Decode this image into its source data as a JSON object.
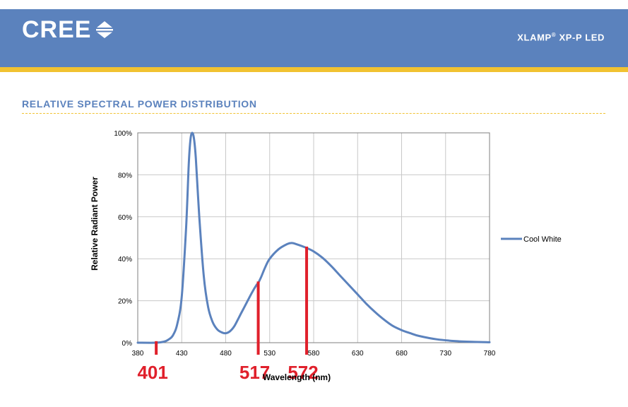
{
  "header": {
    "logo_text": "CREE",
    "product_name": "XLAMP",
    "product_reg": "®",
    "product_model": " XP-P LED",
    "colors": {
      "band": "#5b82bd",
      "stripe": "#f1c231"
    },
    "logo_icon": "cree-diamond-icon"
  },
  "section": {
    "title": "RELATIVE SPECTRAL POWER DISTRIBUTION"
  },
  "chart_data": {
    "type": "line",
    "xlabel": "Wavelength (nm)",
    "ylabel": "Relative Radiant Power",
    "xlim": [
      380,
      780
    ],
    "ylim": [
      0,
      100
    ],
    "xticks": [
      380,
      430,
      480,
      530,
      580,
      630,
      680,
      730,
      780
    ],
    "yticks": [
      0,
      20,
      40,
      60,
      80,
      100
    ],
    "ytick_labels": [
      "0%",
      "20%",
      "40%",
      "60%",
      "80%",
      "100%"
    ],
    "grid": true,
    "legend_position": "right",
    "series": [
      {
        "name": "Cool White",
        "color": "#5b82bd",
        "x": [
          380,
          400,
          410,
          415,
          420,
          425,
          430,
          435,
          438,
          440,
          442,
          444,
          446,
          450,
          455,
          460,
          465,
          470,
          475,
          480,
          485,
          490,
          495,
          500,
          505,
          510,
          515,
          517,
          520,
          525,
          530,
          540,
          550,
          555,
          560,
          570,
          580,
          590,
          600,
          610,
          620,
          630,
          640,
          650,
          660,
          670,
          680,
          690,
          700,
          720,
          740,
          760,
          780
        ],
        "y": [
          0,
          0,
          0.5,
          1.5,
          3.5,
          9,
          22,
          55,
          85,
          97,
          100,
          97,
          88,
          60,
          32,
          17,
          10,
          6.5,
          5,
          4.5,
          5.5,
          8,
          12,
          16,
          20,
          24,
          27.5,
          28.5,
          31,
          36,
          40,
          44.5,
          47,
          47.5,
          47,
          45.5,
          43.5,
          40.5,
          36.5,
          32,
          27.5,
          23,
          18.5,
          14.5,
          11,
          8,
          6,
          4.5,
          3.2,
          1.6,
          0.8,
          0.4,
          0.2
        ]
      }
    ],
    "annotations": [
      {
        "x": 401,
        "label": "401",
        "color": "#e0202b"
      },
      {
        "x": 517,
        "label": "517",
        "color": "#e0202b"
      },
      {
        "x": 572,
        "label": "572",
        "color": "#e0202b"
      }
    ]
  }
}
